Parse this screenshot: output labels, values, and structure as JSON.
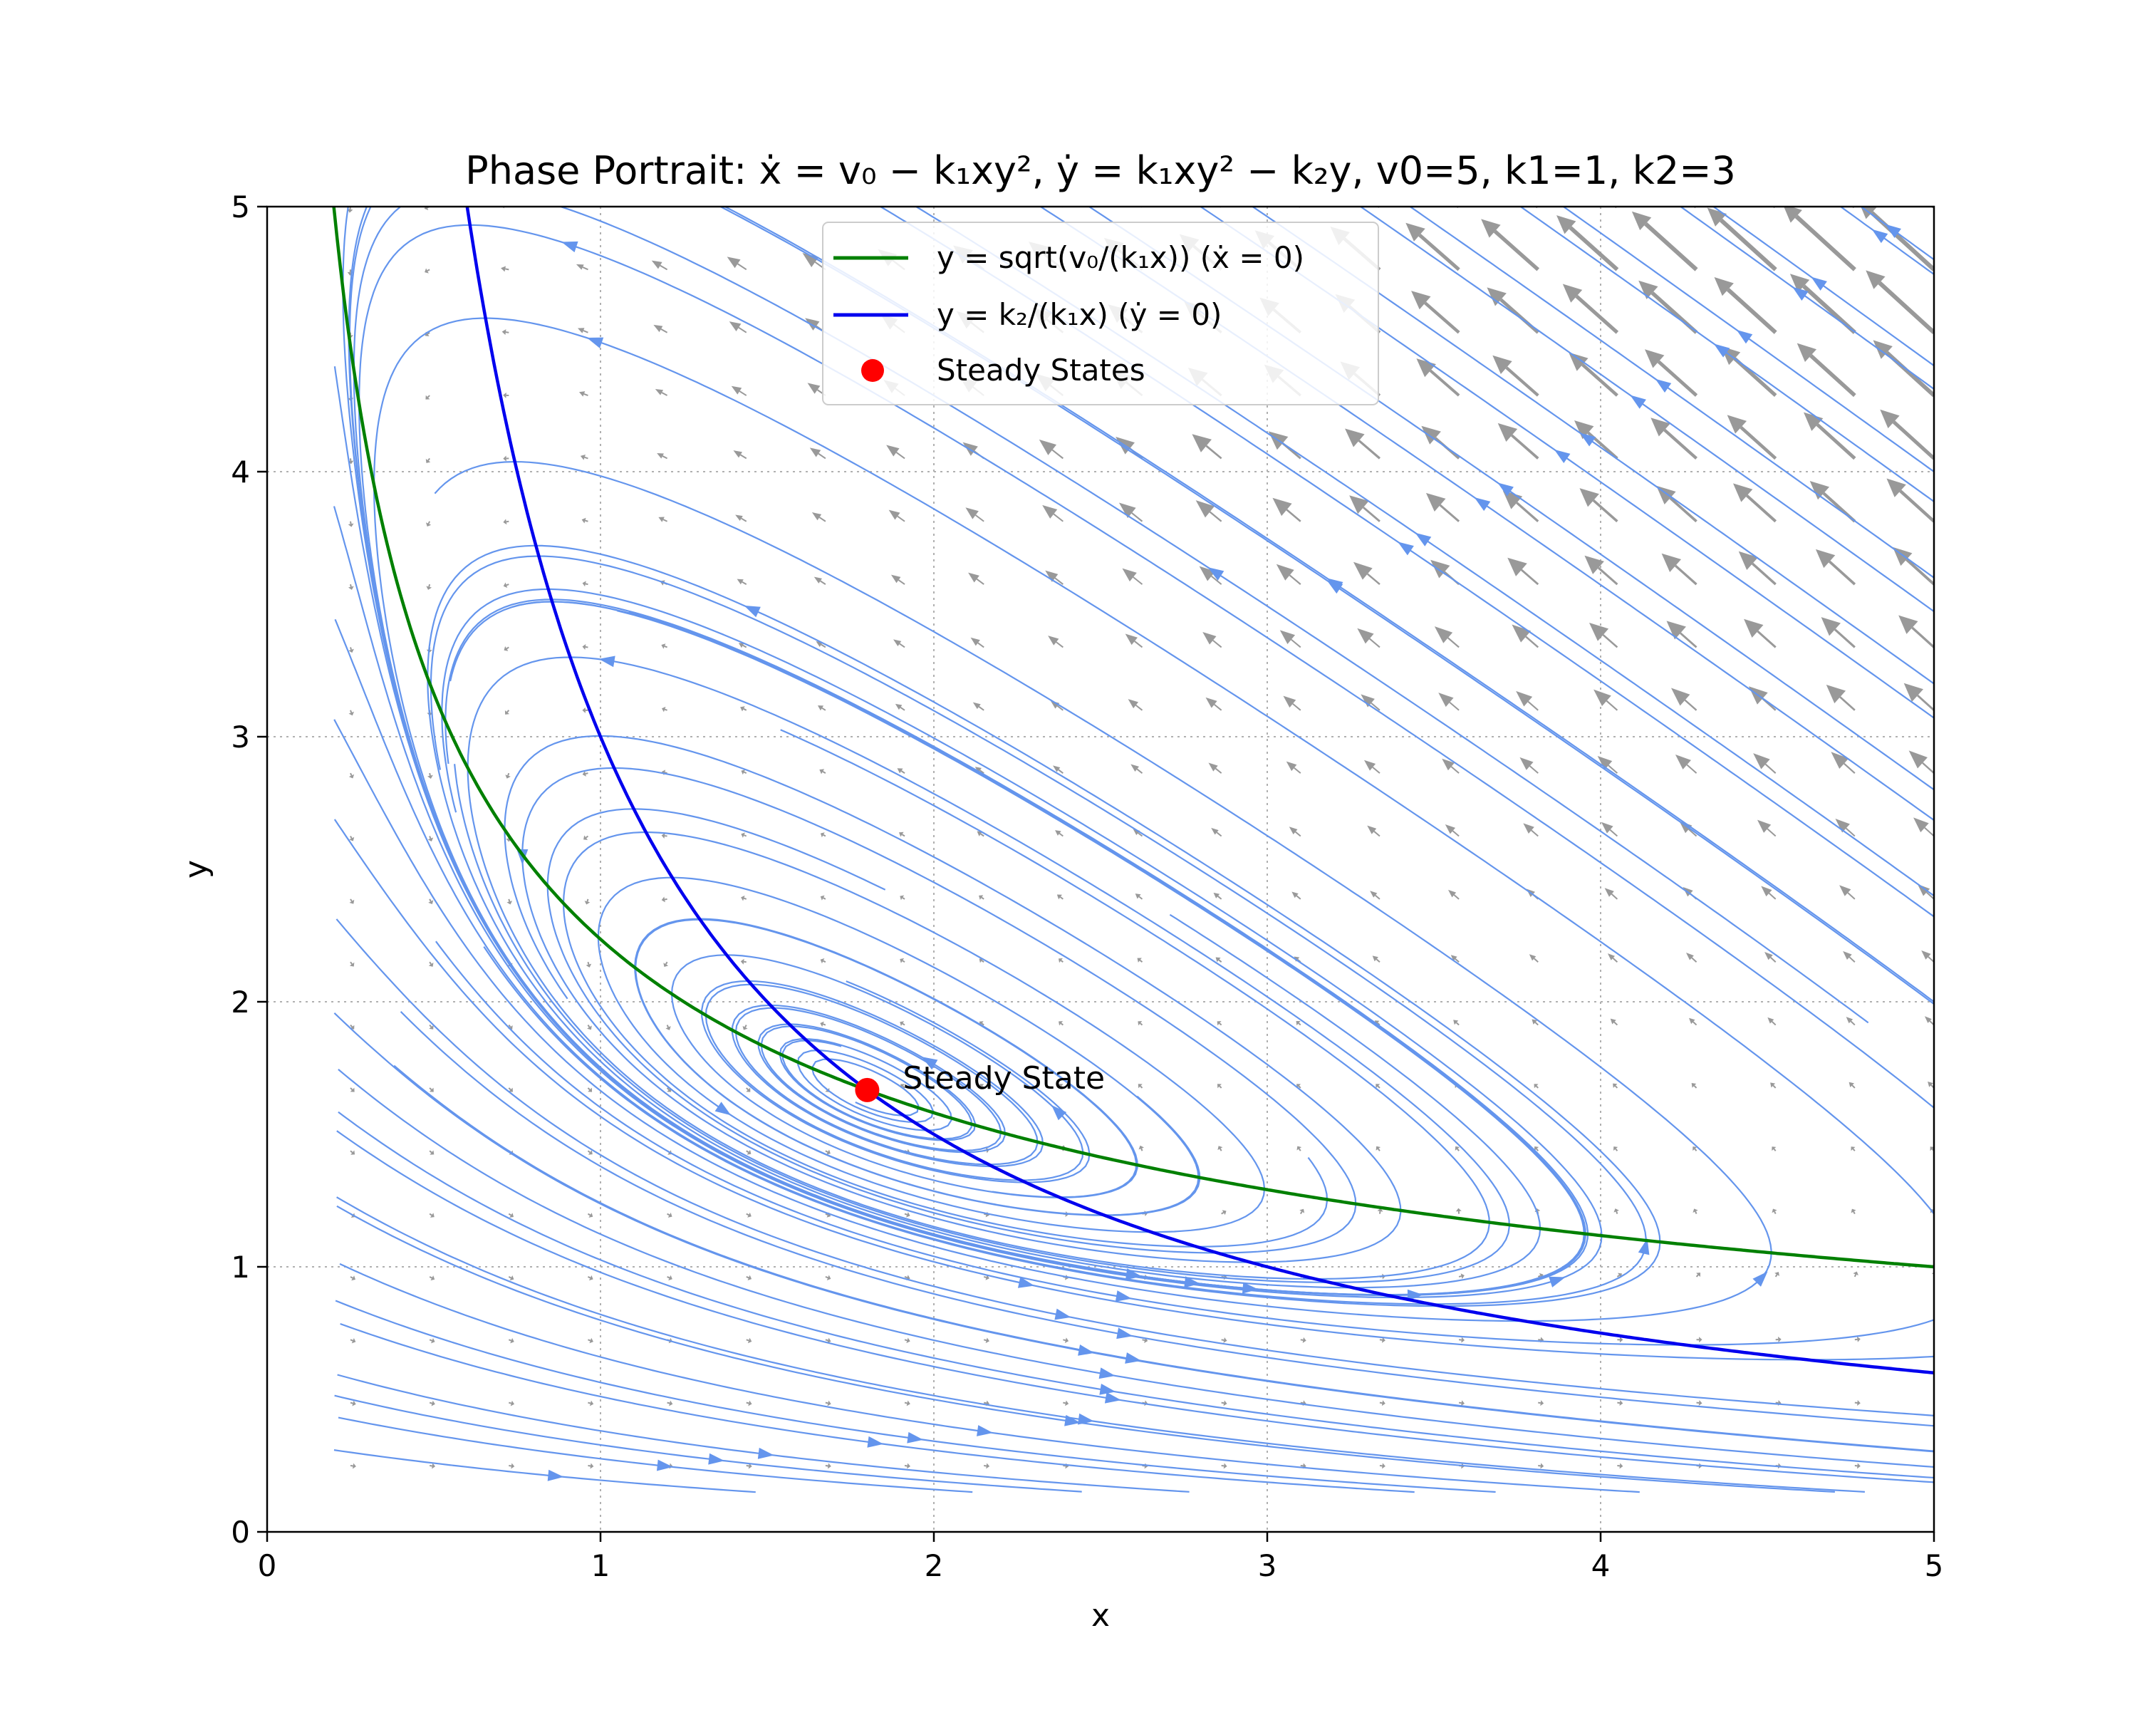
{
  "chart_data": {
    "type": "line",
    "title": "Phase Portrait: ẋ = v₀ − k₁xy², ẏ = k₁xy² − k₂y, v0=5, k1=1, k2=3",
    "xlabel": "x",
    "ylabel": "y",
    "xlim": [
      0,
      5
    ],
    "ylim": [
      0,
      5
    ],
    "x_ticks": [
      "0",
      "1",
      "2",
      "3",
      "4",
      "5"
    ],
    "y_ticks": [
      "0",
      "1",
      "2",
      "3",
      "4",
      "5"
    ],
    "grid": true,
    "legend_position": "top-center",
    "params": {
      "v0": 5,
      "k1": 1,
      "k2": 3
    },
    "series": [
      {
        "name": "y = sqrt(v₀/(k₁x)) (ẋ = 0)",
        "color": "#008000",
        "kind": "line",
        "formula": "sqrt(v0/(k1*x))"
      },
      {
        "name": "y = k₂/(k₁x) (ẏ = 0)",
        "color": "#0000ee",
        "kind": "line",
        "formula": "k2/(k1*x)"
      },
      {
        "name": "Steady States",
        "color": "#ff0000",
        "kind": "scatter",
        "points": [
          [
            1.8,
            1.667
          ]
        ]
      }
    ],
    "annotations": [
      {
        "text": "Steady State",
        "x": 1.8,
        "y": 1.667
      }
    ],
    "streamline_color": "#6495ed",
    "quiver_color": "#999999"
  }
}
